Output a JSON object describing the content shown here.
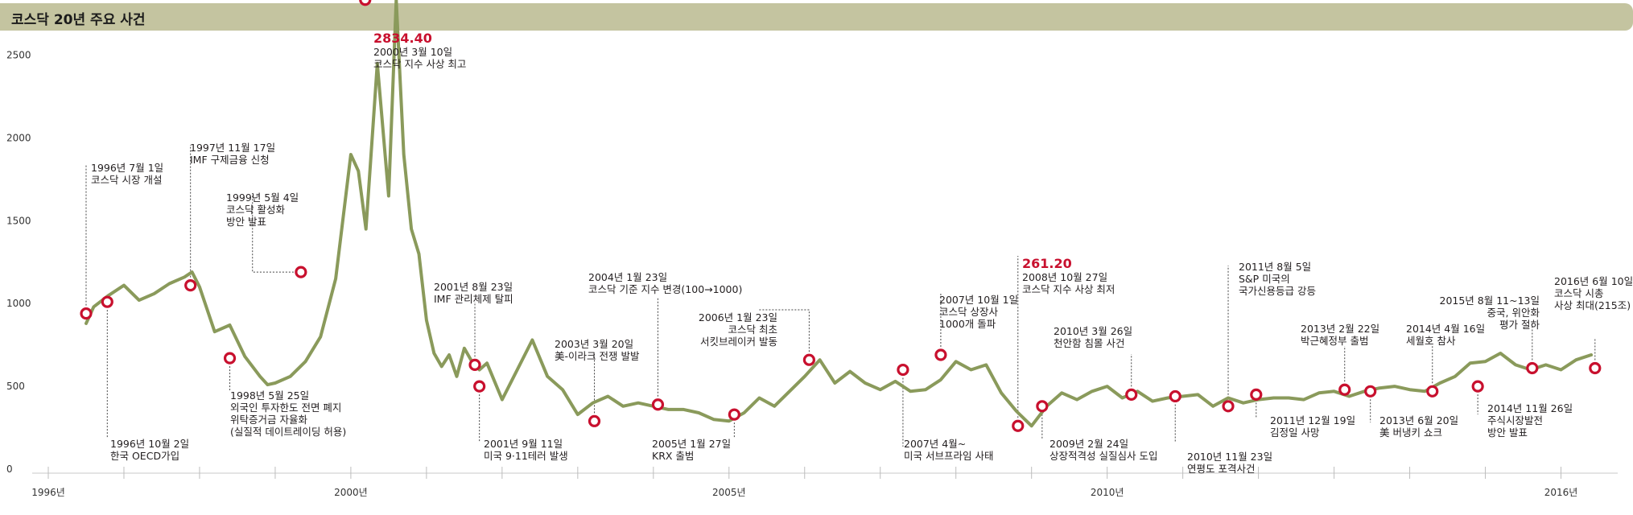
{
  "title": "코스닥 20년 주요 사건",
  "chart_data": {
    "type": "line",
    "title": "코스닥 20년 주요 사건",
    "xlabel": "",
    "ylabel": "",
    "ylim": [
      0,
      2600
    ],
    "xlim": [
      1996.0,
      2016.75
    ],
    "y_ticks": [
      0,
      500,
      1000,
      1500,
      2000,
      2500
    ],
    "x_tick_labels": [
      {
        "x": 1996.0,
        "label": "1996년"
      },
      {
        "x": 2000.0,
        "label": "2000년"
      },
      {
        "x": 2005.0,
        "label": "2005년"
      },
      {
        "x": 2010.0,
        "label": "2010년"
      },
      {
        "x": 2016.0,
        "label": "2016년"
      }
    ],
    "x_grid_marks": [
      1997.0,
      1998.0,
      1999.0,
      2001.0,
      2002.0,
      2003.0,
      2004.0,
      2006.0,
      2007.0,
      2008.0,
      2009.0,
      2011.0,
      2012.0,
      2013.0,
      2014.0,
      2015.0
    ],
    "line_color": "#8a9a5b",
    "marker_color": "#c8102e",
    "highlight_color": "#c8102e",
    "series": [
      {
        "name": "",
        "x": [
          1996.5,
          1996.6,
          1996.8,
          1997.0,
          1997.2,
          1997.4,
          1997.6,
          1997.8,
          1997.9,
          1998.0,
          1998.2,
          1998.4,
          1998.6,
          1998.8,
          1998.9,
          1999.0,
          1999.2,
          1999.4,
          1999.6,
          1999.8,
          2000.0,
          2000.1,
          2000.2,
          2000.35,
          2000.5,
          2000.6,
          2000.7,
          2000.8,
          2000.9,
          2001.0,
          2001.1,
          2001.2,
          2001.3,
          2001.4,
          2001.5,
          2001.6,
          2001.7,
          2001.8,
          2002.0,
          2002.2,
          2002.4,
          2002.6,
          2002.8,
          2003.0,
          2003.2,
          2003.4,
          2003.6,
          2003.8,
          2004.0,
          2004.2,
          2004.4,
          2004.6,
          2004.8,
          2005.0,
          2005.2,
          2005.4,
          2005.6,
          2005.8,
          2006.0,
          2006.2,
          2006.4,
          2006.6,
          2006.8,
          2007.0,
          2007.2,
          2007.4,
          2007.6,
          2007.8,
          2008.0,
          2008.2,
          2008.4,
          2008.6,
          2008.8,
          2009.0,
          2009.2,
          2009.4,
          2009.6,
          2009.8,
          2010.0,
          2010.2,
          2010.4,
          2010.6,
          2010.8,
          2011.0,
          2011.2,
          2011.4,
          2011.6,
          2011.8,
          2012.0,
          2012.2,
          2012.4,
          2012.6,
          2012.8,
          2013.0,
          2013.2,
          2013.4,
          2013.6,
          2013.8,
          2014.0,
          2014.2,
          2014.4,
          2014.6,
          2014.8,
          2015.0,
          2015.2,
          2015.4,
          2015.6,
          2015.8,
          2016.0,
          2016.2,
          2016.4
        ],
        "values": [
          880,
          980,
          1050,
          1110,
          1020,
          1060,
          1120,
          1160,
          1190,
          1100,
          830,
          870,
          680,
          560,
          510,
          520,
          560,
          650,
          800,
          1150,
          1900,
          1800,
          1450,
          2450,
          1650,
          2834,
          1900,
          1450,
          1300,
          900,
          700,
          620,
          690,
          560,
          730,
          650,
          600,
          640,
          420,
          600,
          780,
          560,
          480,
          330,
          400,
          440,
          380,
          400,
          380,
          360,
          360,
          340,
          300,
          290,
          340,
          430,
          380,
          470,
          560,
          660,
          520,
          590,
          520,
          480,
          530,
          470,
          480,
          540,
          650,
          600,
          630,
          460,
          350,
          261,
          380,
          460,
          420,
          470,
          500,
          430,
          470,
          410,
          430,
          440,
          450,
          380,
          430,
          400,
          420,
          430,
          430,
          420,
          460,
          470,
          440,
          470,
          490,
          500,
          480,
          470,
          520,
          560,
          640,
          650,
          700,
          630,
          600,
          630,
          600,
          660,
          690
        ]
      }
    ],
    "annotations": [
      {
        "x": 1996.5,
        "y": 940,
        "lines": [
          "1996년 7월 1일",
          "코스닥 시장 개설"
        ]
      },
      {
        "x": 1996.78,
        "y": 1010,
        "lines": [
          "1996년 10월 2일",
          "한국 OECD가입"
        ]
      },
      {
        "x": 1997.88,
        "y": 1110,
        "lines": [
          "1997년 11월 17일",
          "IMF 구제금융 신청"
        ]
      },
      {
        "x": 1998.4,
        "y": 670,
        "lines": [
          "1998년 5월 25일",
          "외국인 투자한도 전면 폐지",
          "위탁증거금 자율화",
          "(실질적 데이트레이딩 허용)"
        ]
      },
      {
        "x": 1999.34,
        "y": 1190,
        "lines": [
          "1999년 5월 4일",
          "코스닥 활성화",
          "방안 발표"
        ]
      },
      {
        "x": 2000.19,
        "y": 2834.4,
        "highlight": "2834.40",
        "lines": [
          "2000년 3월 10일",
          "코스닥 지수 사상 최고"
        ]
      },
      {
        "x": 2001.64,
        "y": 630,
        "lines": [
          "2001년 8월 23일",
          "IMF 관리체제 탈피"
        ]
      },
      {
        "x": 2001.7,
        "y": 500,
        "lines": [
          "2001년 9월 11일",
          "미국 9·11테러 발생"
        ]
      },
      {
        "x": 2003.22,
        "y": 290,
        "lines": [
          "2003년 3월 20일",
          "美-이라크 전쟁 발발"
        ]
      },
      {
        "x": 2004.06,
        "y": 390,
        "lines": [
          "2004년 1월 23일",
          "코스닥 기준 지수 변경(100→1000)"
        ]
      },
      {
        "x": 2005.07,
        "y": 330,
        "lines": [
          "2005년 1월 27일",
          "KRX 출범"
        ]
      },
      {
        "x": 2006.06,
        "y": 660,
        "lines": [
          "2006년 1월 23일",
          "코스닥 최초",
          "서킷브레이커 발동"
        ]
      },
      {
        "x": 2007.3,
        "y": 600,
        "lines": [
          "2007년 4월~",
          "미국 서브프라임 사태"
        ]
      },
      {
        "x": 2007.8,
        "y": 690,
        "lines": [
          "2007년 10월 1일",
          "코스닥 상장사",
          "1000개 돌파"
        ]
      },
      {
        "x": 2008.82,
        "y": 261.2,
        "highlight": "261.20",
        "lines": [
          "2008년 10월 27일",
          "코스닥 지수 사상 최저"
        ]
      },
      {
        "x": 2009.14,
        "y": 380,
        "lines": [
          "2009년 2월 24일",
          "상장적격성 실질심사 도입"
        ]
      },
      {
        "x": 2010.32,
        "y": 450,
        "lines": [
          "2010년 3월 26일",
          "천안함 침몰 사건"
        ]
      },
      {
        "x": 2010.9,
        "y": 440,
        "lines": [
          "2010년 11월 23일",
          "연평도 포격사건"
        ]
      },
      {
        "x": 2011.6,
        "y": 380,
        "lines": [
          "2011년 8월 5일",
          "S&P 미국의",
          "국가신용등급 강등"
        ]
      },
      {
        "x": 2011.97,
        "y": 450,
        "lines": [
          "2011년 12월 19일",
          "김정일 사망"
        ]
      },
      {
        "x": 2013.14,
        "y": 480,
        "lines": [
          "2013년 2월 22일",
          "박근혜정부 출범"
        ]
      },
      {
        "x": 2013.48,
        "y": 470,
        "lines": [
          "2013년 6월 20일",
          "美 버냉키 쇼크"
        ]
      },
      {
        "x": 2014.3,
        "y": 470,
        "lines": [
          "2014년 4월 16일",
          "세월호 참사"
        ]
      },
      {
        "x": 2014.9,
        "y": 500,
        "lines": [
          "2014년 11월 26일",
          "주식시장발전",
          "방안 발표"
        ]
      },
      {
        "x": 2015.62,
        "y": 610,
        "lines": [
          "2015년 8월 11~13일",
          "중국, 위안화",
          "평가 절하"
        ]
      },
      {
        "x": 2016.45,
        "y": 610,
        "lines": [
          "2016년 6월 10일",
          "코스닥 시총",
          "사상 최대(215조)"
        ]
      }
    ]
  }
}
